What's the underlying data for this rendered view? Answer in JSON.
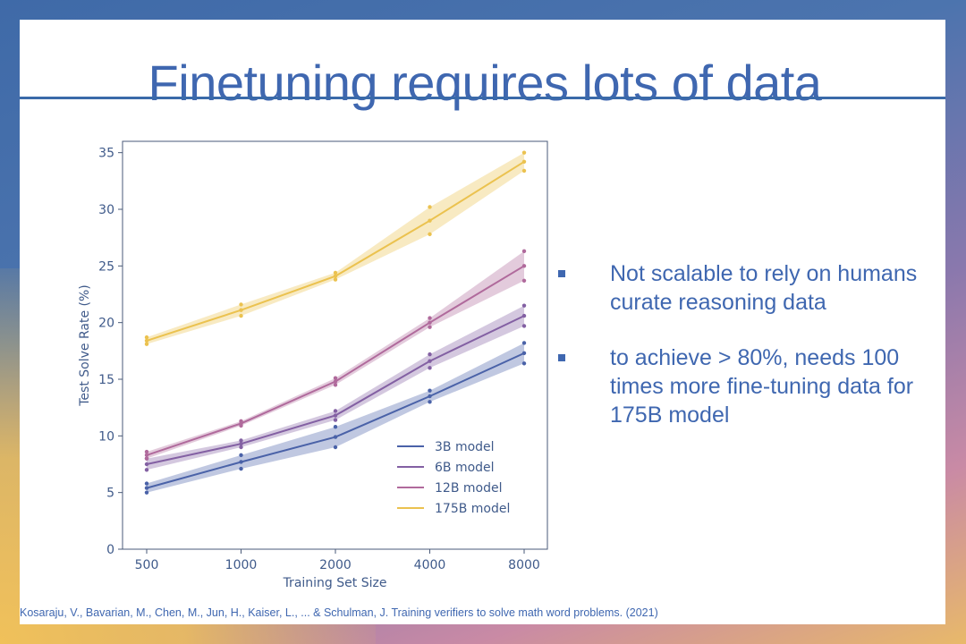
{
  "slide": {
    "title": "Finetuning requires lots of data",
    "bullets": [
      "Not scalable to rely on humans curate reasoning data",
      "to achieve > 80%, needs 100 times more fine-tuning data for 175B model"
    ],
    "citation": "Kosaraju, V., Bavarian, M., Chen, M., Jun, H., Kaiser, L., ... & Schulman, J. Training verifiers to solve math word problems. (2021)"
  },
  "chart_data": {
    "type": "line",
    "xlabel": "Training Set Size",
    "ylabel": "Test Solve Rate (%)",
    "x": [
      500,
      1000,
      2000,
      4000,
      8000
    ],
    "x_scale": "log",
    "xticks": [
      "500",
      "1000",
      "2000",
      "4000",
      "8000"
    ],
    "ylim": [
      0,
      36
    ],
    "yticks": [
      "0",
      "5",
      "10",
      "15",
      "20",
      "25",
      "30",
      "35"
    ],
    "grid": false,
    "legend_position": "lower-right",
    "series": [
      {
        "name": "3B model",
        "color": "#4a62a8",
        "values": [
          5.4,
          7.7,
          9.9,
          13.5,
          17.3
        ],
        "band": [
          0.4,
          0.6,
          0.9,
          0.5,
          0.9
        ]
      },
      {
        "name": "6B model",
        "color": "#8360a3",
        "values": [
          7.5,
          9.3,
          11.8,
          16.6,
          20.6
        ],
        "band": [
          0.5,
          0.3,
          0.4,
          0.6,
          0.9
        ]
      },
      {
        "name": "12B model",
        "color": "#b06a9c",
        "values": [
          8.3,
          11.1,
          14.8,
          20.0,
          25.0
        ],
        "band": [
          0.3,
          0.2,
          0.3,
          0.4,
          1.3
        ]
      },
      {
        "name": "175B model",
        "color": "#ebc24f",
        "values": [
          18.4,
          21.1,
          24.1,
          29.0,
          34.2
        ],
        "band": [
          0.3,
          0.5,
          0.3,
          1.2,
          0.8
        ]
      }
    ]
  }
}
